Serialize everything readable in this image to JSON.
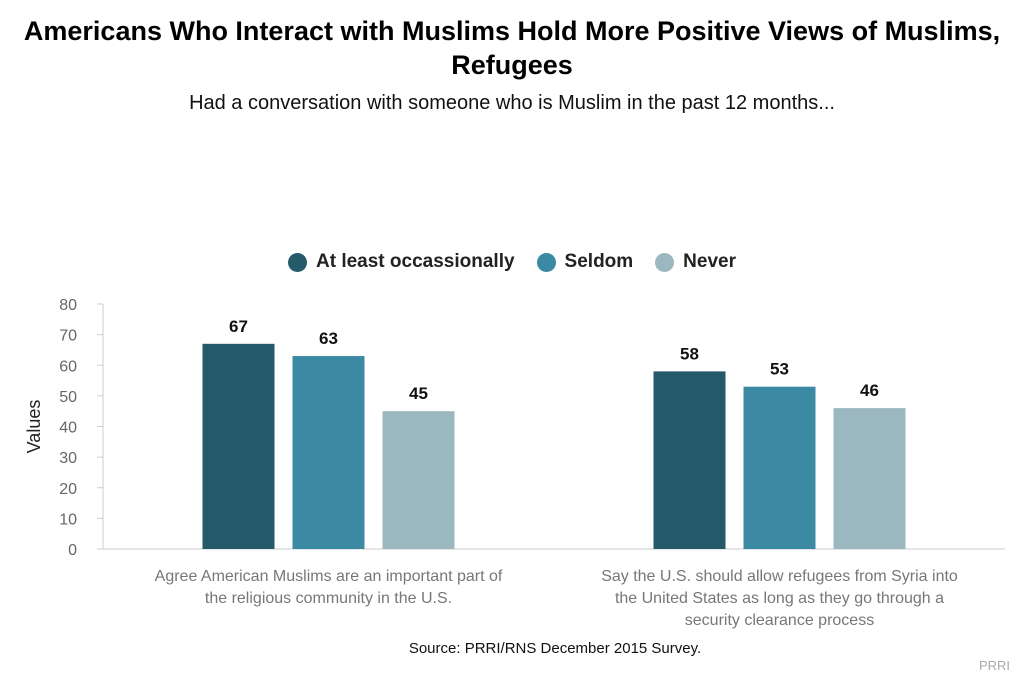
{
  "chart_data": {
    "type": "bar",
    "title": "Americans Who Interact with Muslims Hold More Positive Views of Muslims, Refugees",
    "subtitle": "Had a conversation with someone who is Muslim in the past 12 months...",
    "categories": [
      [
        "Agree American Muslims are an important part of",
        "the religious community in the U.S."
      ],
      [
        "Say the U.S. should allow refugees from Syria into",
        "the United States as long as they go through a",
        "security clearance process"
      ]
    ],
    "series": [
      {
        "name": "At least occassionally",
        "values": [
          67,
          58
        ],
        "color": "#255a6a"
      },
      {
        "name": "Seldom",
        "values": [
          63,
          53
        ],
        "color": "#3b89a2"
      },
      {
        "name": "Never",
        "values": [
          45,
          46
        ],
        "color": "#9bb8c0"
      }
    ],
    "ylabel": "Values",
    "xlabel": "",
    "ylim": [
      0,
      80
    ],
    "yticks": [
      0,
      10,
      20,
      30,
      40,
      50,
      60,
      70,
      80
    ],
    "legend_position": "top-center",
    "grid": false
  },
  "source": "Source: PRRI/RNS December 2015 Survey.",
  "credit": "PRRI"
}
